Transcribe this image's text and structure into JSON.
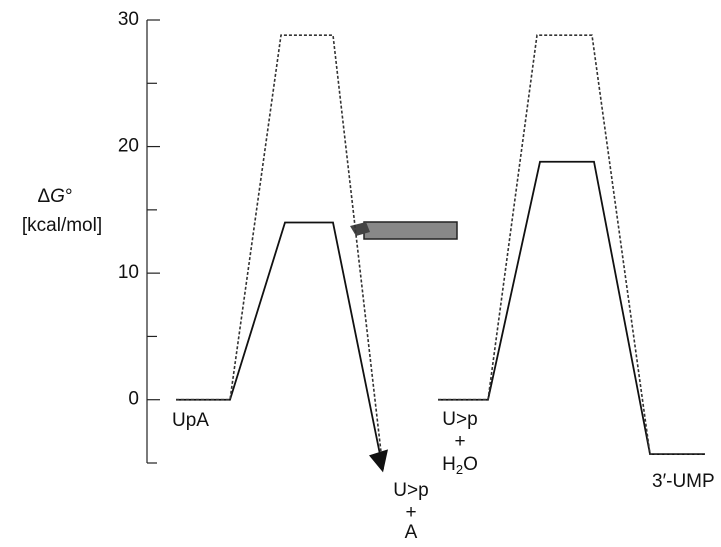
{
  "chart_data": {
    "type": "line",
    "ylabel": [
      "Δ",
      "G",
      "°"
    ],
    "ylabel_unit": "[kcal/mol]",
    "ylim": [
      -5,
      30
    ],
    "yticks": [
      0,
      10,
      20,
      30
    ],
    "minor_yticks": [
      -5,
      5,
      15,
      25
    ],
    "series": [
      {
        "color": "#111111",
        "dashed": false,
        "values": [
          0,
          0,
          14,
          14,
          -5.5
        ]
      },
      {
        "color": "#333333",
        "dashed": true,
        "values": [
          0,
          0,
          28.8,
          28.8,
          -5.5
        ]
      },
      {
        "color": "#111111",
        "dashed": false,
        "values": [
          0,
          0,
          18.8,
          18.8,
          -4.3,
          -4.3
        ]
      },
      {
        "color": "#333333",
        "dashed": true,
        "values": [
          0,
          0,
          28.8,
          28.8,
          -4.3,
          -4.3
        ]
      }
    ],
    "state_labels": {
      "upa": "UpA",
      "product1": [
        "U>p",
        "+",
        "A"
      ],
      "start2": [
        "U>p",
        "+",
        "H",
        "2",
        "O"
      ],
      "product2": "3′-UMP"
    }
  }
}
